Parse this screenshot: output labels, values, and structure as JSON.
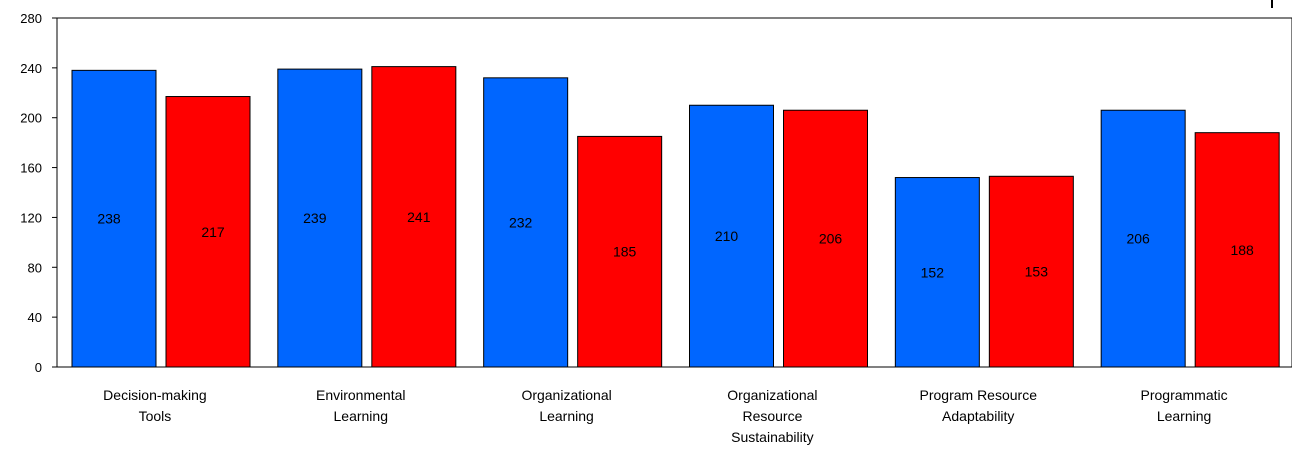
{
  "chart_data": {
    "type": "bar",
    "title": "",
    "xlabel": "",
    "ylabel": "",
    "ylim": [
      0,
      280
    ],
    "yticks": [
      0,
      40,
      80,
      120,
      160,
      200,
      240,
      280
    ],
    "grid": false,
    "legend": "none",
    "categories": [
      [
        "Decision-making",
        "Tools"
      ],
      [
        "Environmental",
        "Learning"
      ],
      [
        "Organizational",
        "Learning"
      ],
      [
        "Organizational",
        "Resource",
        "Sustainability"
      ],
      [
        "Program Resource",
        "Adaptability"
      ],
      [
        "Programmatic",
        "Learning"
      ]
    ],
    "series": [
      {
        "color": "#0066ff",
        "values": [
          238,
          239,
          232,
          210,
          152,
          206
        ]
      },
      {
        "color": "#ff0000",
        "values": [
          217,
          241,
          185,
          206,
          153,
          188
        ]
      }
    ]
  }
}
